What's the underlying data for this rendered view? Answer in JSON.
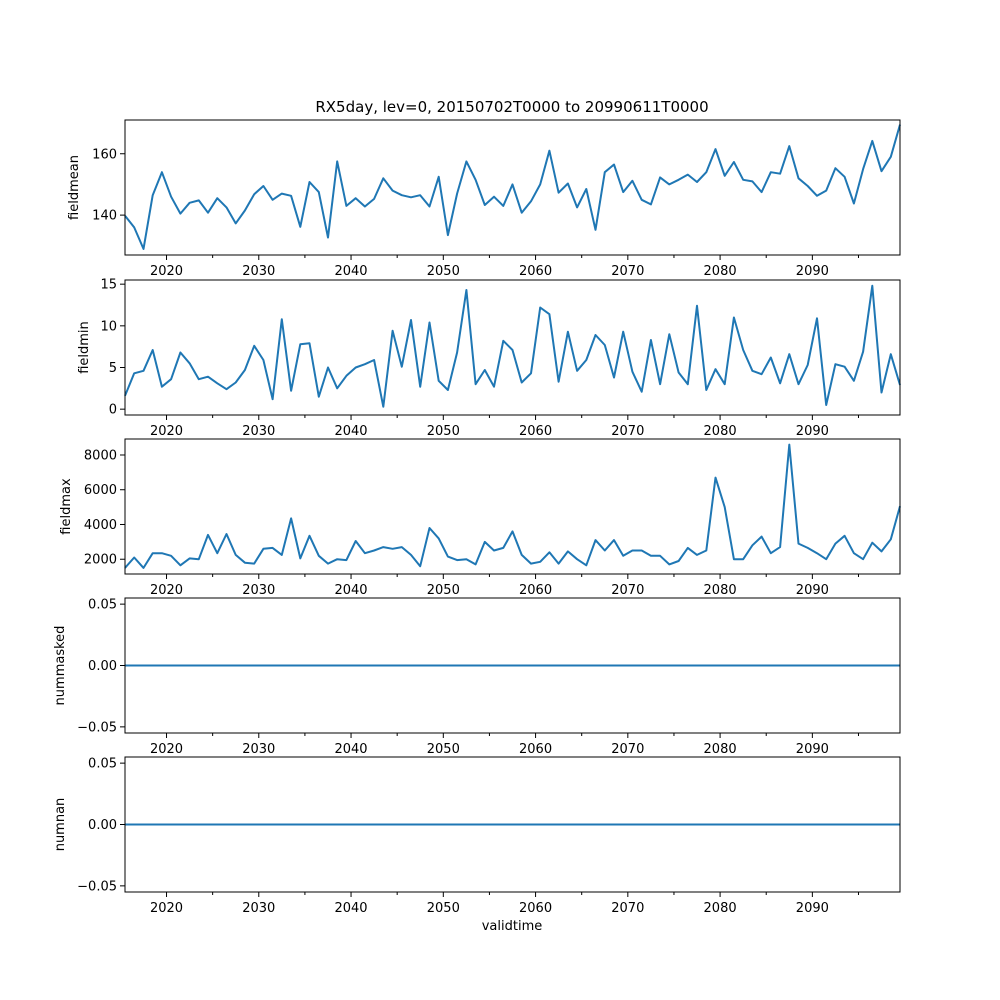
{
  "title": "RX5day, lev=0, 20150702T0000 to 20990611T0000",
  "xlabel": "validtime",
  "colors": {
    "line": "#1f77b4",
    "axes": "#000000",
    "background": "#ffffff"
  },
  "chart_data": [
    {
      "type": "line",
      "ylabel": "fieldmean",
      "xlim": [
        2015.5,
        2099.5
      ],
      "x_ticks": [
        2020,
        2030,
        2040,
        2050,
        2060,
        2070,
        2080,
        2090
      ],
      "ylim": [
        127,
        171
      ],
      "y_ticks": [
        140,
        160
      ],
      "y_tick_labels": [
        "140",
        "160"
      ],
      "x": [
        2015.5,
        2016.5,
        2017.5,
        2018.5,
        2019.5,
        2020.5,
        2021.5,
        2022.5,
        2023.5,
        2024.5,
        2025.5,
        2026.5,
        2027.5,
        2028.5,
        2029.5,
        2030.5,
        2031.5,
        2032.5,
        2033.5,
        2034.5,
        2035.5,
        2036.5,
        2037.5,
        2038.5,
        2039.5,
        2040.5,
        2041.5,
        2042.5,
        2043.5,
        2044.5,
        2045.5,
        2046.5,
        2047.5,
        2048.5,
        2049.5,
        2050.5,
        2051.5,
        2052.5,
        2053.5,
        2054.5,
        2055.5,
        2056.5,
        2057.5,
        2058.5,
        2059.5,
        2060.5,
        2061.5,
        2062.5,
        2063.5,
        2064.5,
        2065.5,
        2066.5,
        2067.5,
        2068.5,
        2069.5,
        2070.5,
        2071.5,
        2072.5,
        2073.5,
        2074.5,
        2075.5,
        2076.5,
        2077.5,
        2078.5,
        2079.5,
        2080.5,
        2081.5,
        2082.5,
        2083.5,
        2084.5,
        2085.5,
        2086.5,
        2087.5,
        2088.5,
        2089.5,
        2090.5,
        2091.5,
        2092.5,
        2093.5,
        2094.5,
        2095.5,
        2096.5,
        2097.5,
        2098.5,
        2099.5
      ],
      "values": [
        139.8,
        136.0,
        129.0,
        146.5,
        154.0,
        146.0,
        140.5,
        144.0,
        144.8,
        140.8,
        145.5,
        142.5,
        137.3,
        141.5,
        146.8,
        149.5,
        145.0,
        147.0,
        146.3,
        136.2,
        150.8,
        147.5,
        132.7,
        157.5,
        143.0,
        145.5,
        142.8,
        145.3,
        152.0,
        148.0,
        146.5,
        145.8,
        146.5,
        142.8,
        152.5,
        133.5,
        147.0,
        157.5,
        151.5,
        143.3,
        146.0,
        143.0,
        150.0,
        140.8,
        144.5,
        150.0,
        161.0,
        147.3,
        150.3,
        142.5,
        148.5,
        135.2,
        154.0,
        156.5,
        147.5,
        151.2,
        145.0,
        143.5,
        152.3,
        150.0,
        151.5,
        153.2,
        150.8,
        154.0,
        161.5,
        152.8,
        157.3,
        151.5,
        151.0,
        147.5,
        154.0,
        153.5,
        162.5,
        152.0,
        149.5,
        146.3,
        148.0,
        155.3,
        152.5,
        143.8,
        155.0,
        164.2,
        154.3,
        159.0,
        169.5
      ]
    },
    {
      "type": "line",
      "ylabel": "fieldmin",
      "xlim": [
        2015.5,
        2099.5
      ],
      "x_ticks": [
        2020,
        2030,
        2040,
        2050,
        2060,
        2070,
        2080,
        2090
      ],
      "ylim": [
        -0.7,
        15.5
      ],
      "y_ticks": [
        0,
        5,
        10,
        15
      ],
      "y_tick_labels": [
        "0",
        "5",
        "10",
        "15"
      ],
      "x": [
        2015.5,
        2016.5,
        2017.5,
        2018.5,
        2019.5,
        2020.5,
        2021.5,
        2022.5,
        2023.5,
        2024.5,
        2025.5,
        2026.5,
        2027.5,
        2028.5,
        2029.5,
        2030.5,
        2031.5,
        2032.5,
        2033.5,
        2034.5,
        2035.5,
        2036.5,
        2037.5,
        2038.5,
        2039.5,
        2040.5,
        2041.5,
        2042.5,
        2043.5,
        2044.5,
        2045.5,
        2046.5,
        2047.5,
        2048.5,
        2049.5,
        2050.5,
        2051.5,
        2052.5,
        2053.5,
        2054.5,
        2055.5,
        2056.5,
        2057.5,
        2058.5,
        2059.5,
        2060.5,
        2061.5,
        2062.5,
        2063.5,
        2064.5,
        2065.5,
        2066.5,
        2067.5,
        2068.5,
        2069.5,
        2070.5,
        2071.5,
        2072.5,
        2073.5,
        2074.5,
        2075.5,
        2076.5,
        2077.5,
        2078.5,
        2079.5,
        2080.5,
        2081.5,
        2082.5,
        2083.5,
        2084.5,
        2085.5,
        2086.5,
        2087.5,
        2088.5,
        2089.5,
        2090.5,
        2091.5,
        2092.5,
        2093.5,
        2094.5,
        2095.5,
        2096.5,
        2097.5,
        2098.5,
        2099.5
      ],
      "values": [
        1.6,
        4.3,
        4.6,
        7.1,
        2.7,
        3.6,
        6.8,
        5.5,
        3.6,
        3.9,
        3.1,
        2.4,
        3.2,
        4.7,
        7.6,
        5.9,
        1.2,
        10.8,
        2.2,
        7.8,
        7.9,
        1.5,
        5.0,
        2.5,
        4.0,
        5.0,
        5.4,
        5.9,
        0.3,
        9.4,
        5.1,
        10.7,
        2.7,
        10.4,
        3.4,
        2.3,
        6.8,
        14.3,
        3.0,
        4.7,
        2.7,
        8.2,
        7.1,
        3.2,
        4.3,
        12.2,
        11.4,
        3.3,
        9.3,
        4.6,
        5.9,
        8.9,
        7.7,
        3.8,
        9.3,
        4.5,
        2.1,
        8.3,
        3.0,
        9.0,
        4.4,
        3.0,
        12.4,
        2.3,
        4.8,
        3.0,
        11.0,
        7.1,
        4.6,
        4.2,
        6.2,
        3.1,
        6.6,
        3.0,
        5.3,
        10.9,
        0.5,
        5.4,
        5.1,
        3.4,
        6.9,
        14.8,
        2.0,
        6.6,
        2.9
      ]
    },
    {
      "type": "line",
      "ylabel": "fieldmax",
      "xlim": [
        2015.5,
        2099.5
      ],
      "x_ticks": [
        2020,
        2030,
        2040,
        2050,
        2060,
        2070,
        2080,
        2090
      ],
      "ylim": [
        1150,
        8920
      ],
      "y_ticks": [
        2000,
        4000,
        6000,
        8000
      ],
      "y_tick_labels": [
        "2000",
        "4000",
        "6000",
        "8000"
      ],
      "x": [
        2015.5,
        2016.5,
        2017.5,
        2018.5,
        2019.5,
        2020.5,
        2021.5,
        2022.5,
        2023.5,
        2024.5,
        2025.5,
        2026.5,
        2027.5,
        2028.5,
        2029.5,
        2030.5,
        2031.5,
        2032.5,
        2033.5,
        2034.5,
        2035.5,
        2036.5,
        2037.5,
        2038.5,
        2039.5,
        2040.5,
        2041.5,
        2042.5,
        2043.5,
        2044.5,
        2045.5,
        2046.5,
        2047.5,
        2048.5,
        2049.5,
        2050.5,
        2051.5,
        2052.5,
        2053.5,
        2054.5,
        2055.5,
        2056.5,
        2057.5,
        2058.5,
        2059.5,
        2060.5,
        2061.5,
        2062.5,
        2063.5,
        2064.5,
        2065.5,
        2066.5,
        2067.5,
        2068.5,
        2069.5,
        2070.5,
        2071.5,
        2072.5,
        2073.5,
        2074.5,
        2075.5,
        2076.5,
        2077.5,
        2078.5,
        2079.5,
        2080.5,
        2081.5,
        2082.5,
        2083.5,
        2084.5,
        2085.5,
        2086.5,
        2087.5,
        2088.5,
        2089.5,
        2090.5,
        2091.5,
        2092.5,
        2093.5,
        2094.5,
        2095.5,
        2096.5,
        2097.5,
        2098.5,
        2099.5
      ],
      "values": [
        1500,
        2100,
        1500,
        2350,
        2350,
        2200,
        1650,
        2050,
        2000,
        3400,
        2350,
        3450,
        2250,
        1800,
        1750,
        2600,
        2650,
        2250,
        4350,
        2050,
        3350,
        2200,
        1750,
        2000,
        1950,
        3050,
        2350,
        2500,
        2700,
        2600,
        2700,
        2250,
        1600,
        3800,
        3200,
        2150,
        1950,
        2000,
        1700,
        3000,
        2500,
        2650,
        3600,
        2250,
        1750,
        1850,
        2400,
        1750,
        2450,
        2000,
        1650,
        3100,
        2500,
        3100,
        2200,
        2500,
        2500,
        2200,
        2200,
        1700,
        1900,
        2650,
        2250,
        2500,
        6700,
        5000,
        2000,
        2000,
        2800,
        3300,
        2350,
        2700,
        8600,
        2900,
        2650,
        2350,
        2000,
        2900,
        3350,
        2350,
        2000,
        2950,
        2450,
        3150,
        5050
      ]
    },
    {
      "type": "line",
      "ylabel": "nummasked",
      "xlim": [
        2015.5,
        2099.5
      ],
      "x_ticks": [
        2020,
        2030,
        2040,
        2050,
        2060,
        2070,
        2080,
        2090
      ],
      "ylim": [
        -0.055,
        0.055
      ],
      "y_ticks": [
        -0.05,
        0,
        0.05
      ],
      "y_tick_labels": [
        "−0.05",
        "0.00",
        "0.05"
      ],
      "x": [
        2015.5,
        2099.5
      ],
      "values": [
        0,
        0
      ]
    },
    {
      "type": "line",
      "ylabel": "numnan",
      "xlim": [
        2015.5,
        2099.5
      ],
      "x_ticks": [
        2020,
        2030,
        2040,
        2050,
        2060,
        2070,
        2080,
        2090
      ],
      "ylim": [
        -0.055,
        0.055
      ],
      "y_ticks": [
        -0.05,
        0,
        0.05
      ],
      "y_tick_labels": [
        "−0.05",
        "0.00",
        "0.05"
      ],
      "x": [
        2015.5,
        2099.5
      ],
      "values": [
        0,
        0
      ]
    }
  ]
}
